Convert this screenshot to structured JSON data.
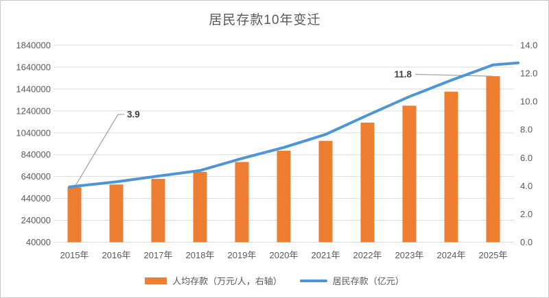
{
  "chart_data": {
    "type": "combo_bar_line",
    "title": "居民存款10年变迁",
    "categories": [
      "2015年",
      "2016年",
      "2017年",
      "2018年",
      "2019年",
      "2020年",
      "2021年",
      "2022年",
      "2023年",
      "2024年",
      "2025年"
    ],
    "series": [
      {
        "name": "人均存款（万元/人，右轴）",
        "type": "bar",
        "axis": "right",
        "color": "#ED7D31",
        "values": [
          3.9,
          4.1,
          4.5,
          5.0,
          5.7,
          6.5,
          7.2,
          8.5,
          9.7,
          10.7,
          11.8
        ]
      },
      {
        "name": "居民存款（亿元）",
        "type": "line",
        "axis": "left",
        "color": "#4E95D8",
        "values": [
          550000,
          592000,
          644000,
          695000,
          805000,
          905000,
          1025000,
          1200000,
          1370000,
          1520000,
          1660000
        ]
      }
    ],
    "left_axis": {
      "min": 40000,
      "max": 1840000,
      "step": 200000,
      "ticks": [
        "40000",
        "240000",
        "440000",
        "640000",
        "840000",
        "1040000",
        "1240000",
        "1440000",
        "1640000",
        "1840000"
      ]
    },
    "right_axis": {
      "min": 0.0,
      "max": 14.0,
      "step": 2.0,
      "ticks": [
        "0.0",
        "2.0",
        "4.0",
        "6.0",
        "8.0",
        "10.0",
        "12.0",
        "14.0"
      ]
    },
    "annotations": [
      {
        "text": "3.9",
        "category": "2015年",
        "series": "人均存款（万元/人，右轴）",
        "value": 3.9
      },
      {
        "text": "11.8",
        "category": "2025年",
        "series": "人均存款（万元/人，右轴）",
        "value": 11.8
      }
    ],
    "grid": true,
    "legend_position": "bottom",
    "colors": {
      "bar": "#ED7D31",
      "line": "#4E95D8",
      "grid": "#D9D9D9",
      "leader": "#A6A6A6",
      "text": "#595959",
      "annotation_text": "#404040"
    }
  }
}
